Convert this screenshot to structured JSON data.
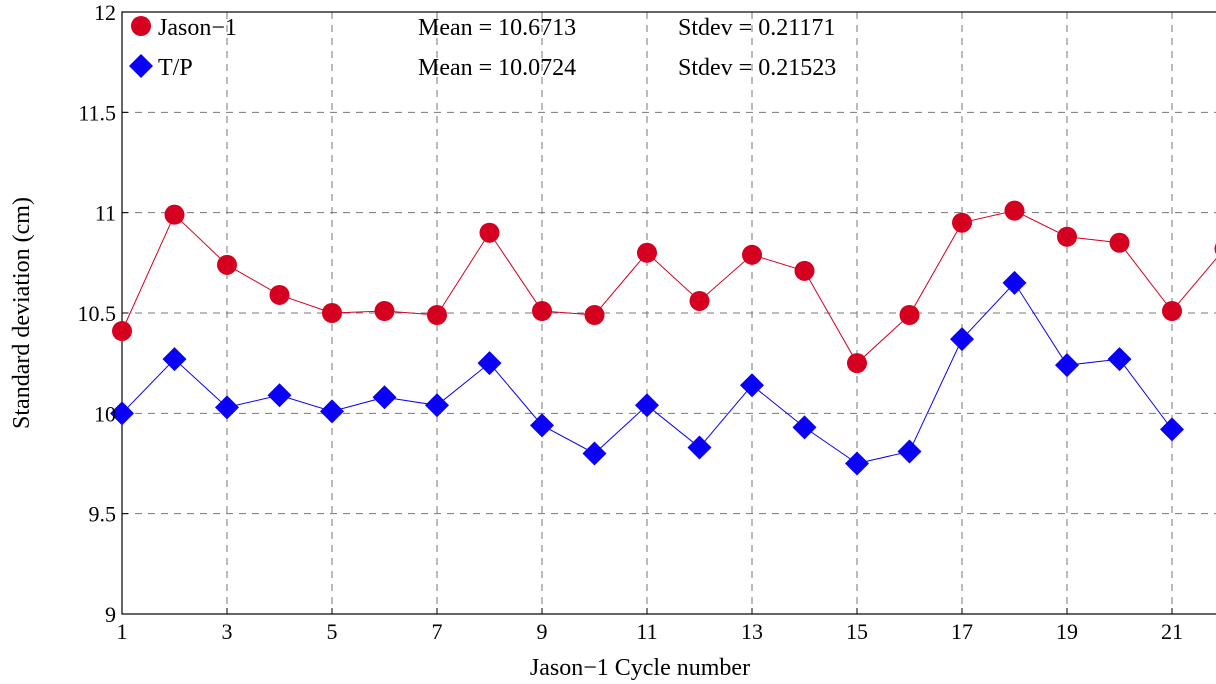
{
  "chart_data": {
    "type": "line",
    "xlabel": "Jason−1 Cycle number",
    "ylabel": "Standard deviation (cm)",
    "xlim": [
      1,
      22
    ],
    "ylim": [
      9,
      12
    ],
    "x_ticks": [
      1,
      3,
      5,
      7,
      9,
      11,
      13,
      15,
      17,
      19,
      21
    ],
    "y_ticks": [
      9,
      9.5,
      10,
      10.5,
      11,
      11.5,
      12
    ],
    "y_tick_labels": [
      "9",
      "9.5",
      "10",
      "10.5",
      "11",
      "11.5",
      "12"
    ],
    "grid": true,
    "legend_position": "top-left",
    "series": [
      {
        "name": "Jason−1",
        "color": "#d5001f",
        "marker": "circle",
        "x": [
          1,
          2,
          3,
          4,
          5,
          6,
          7,
          8,
          9,
          10,
          11,
          12,
          13,
          14,
          15,
          16,
          17,
          18,
          19,
          20,
          21,
          22
        ],
        "values": [
          10.41,
          10.99,
          10.74,
          10.59,
          10.5,
          10.51,
          10.49,
          10.9,
          10.51,
          10.49,
          10.8,
          10.56,
          10.79,
          10.71,
          10.25,
          10.49,
          10.95,
          11.01,
          10.88,
          10.85,
          10.51,
          10.82
        ]
      },
      {
        "name": "T/P",
        "color": "#0a00f5",
        "marker": "diamond",
        "x": [
          1,
          2,
          3,
          4,
          5,
          6,
          7,
          8,
          9,
          10,
          11,
          12,
          13,
          14,
          15,
          16,
          17,
          18,
          19,
          20,
          21
        ],
        "values": [
          10.0,
          10.27,
          10.03,
          10.09,
          10.01,
          10.08,
          10.04,
          10.25,
          9.94,
          9.8,
          10.04,
          9.83,
          10.14,
          9.93,
          9.75,
          9.81,
          10.37,
          10.65,
          10.24,
          10.27,
          9.92
        ]
      }
    ],
    "stats": [
      {
        "mean": "Mean = 10.6713",
        "stdev": "Stdev = 0.21171"
      },
      {
        "mean": "Mean = 10.0724",
        "stdev": "Stdev = 0.21523"
      }
    ]
  }
}
